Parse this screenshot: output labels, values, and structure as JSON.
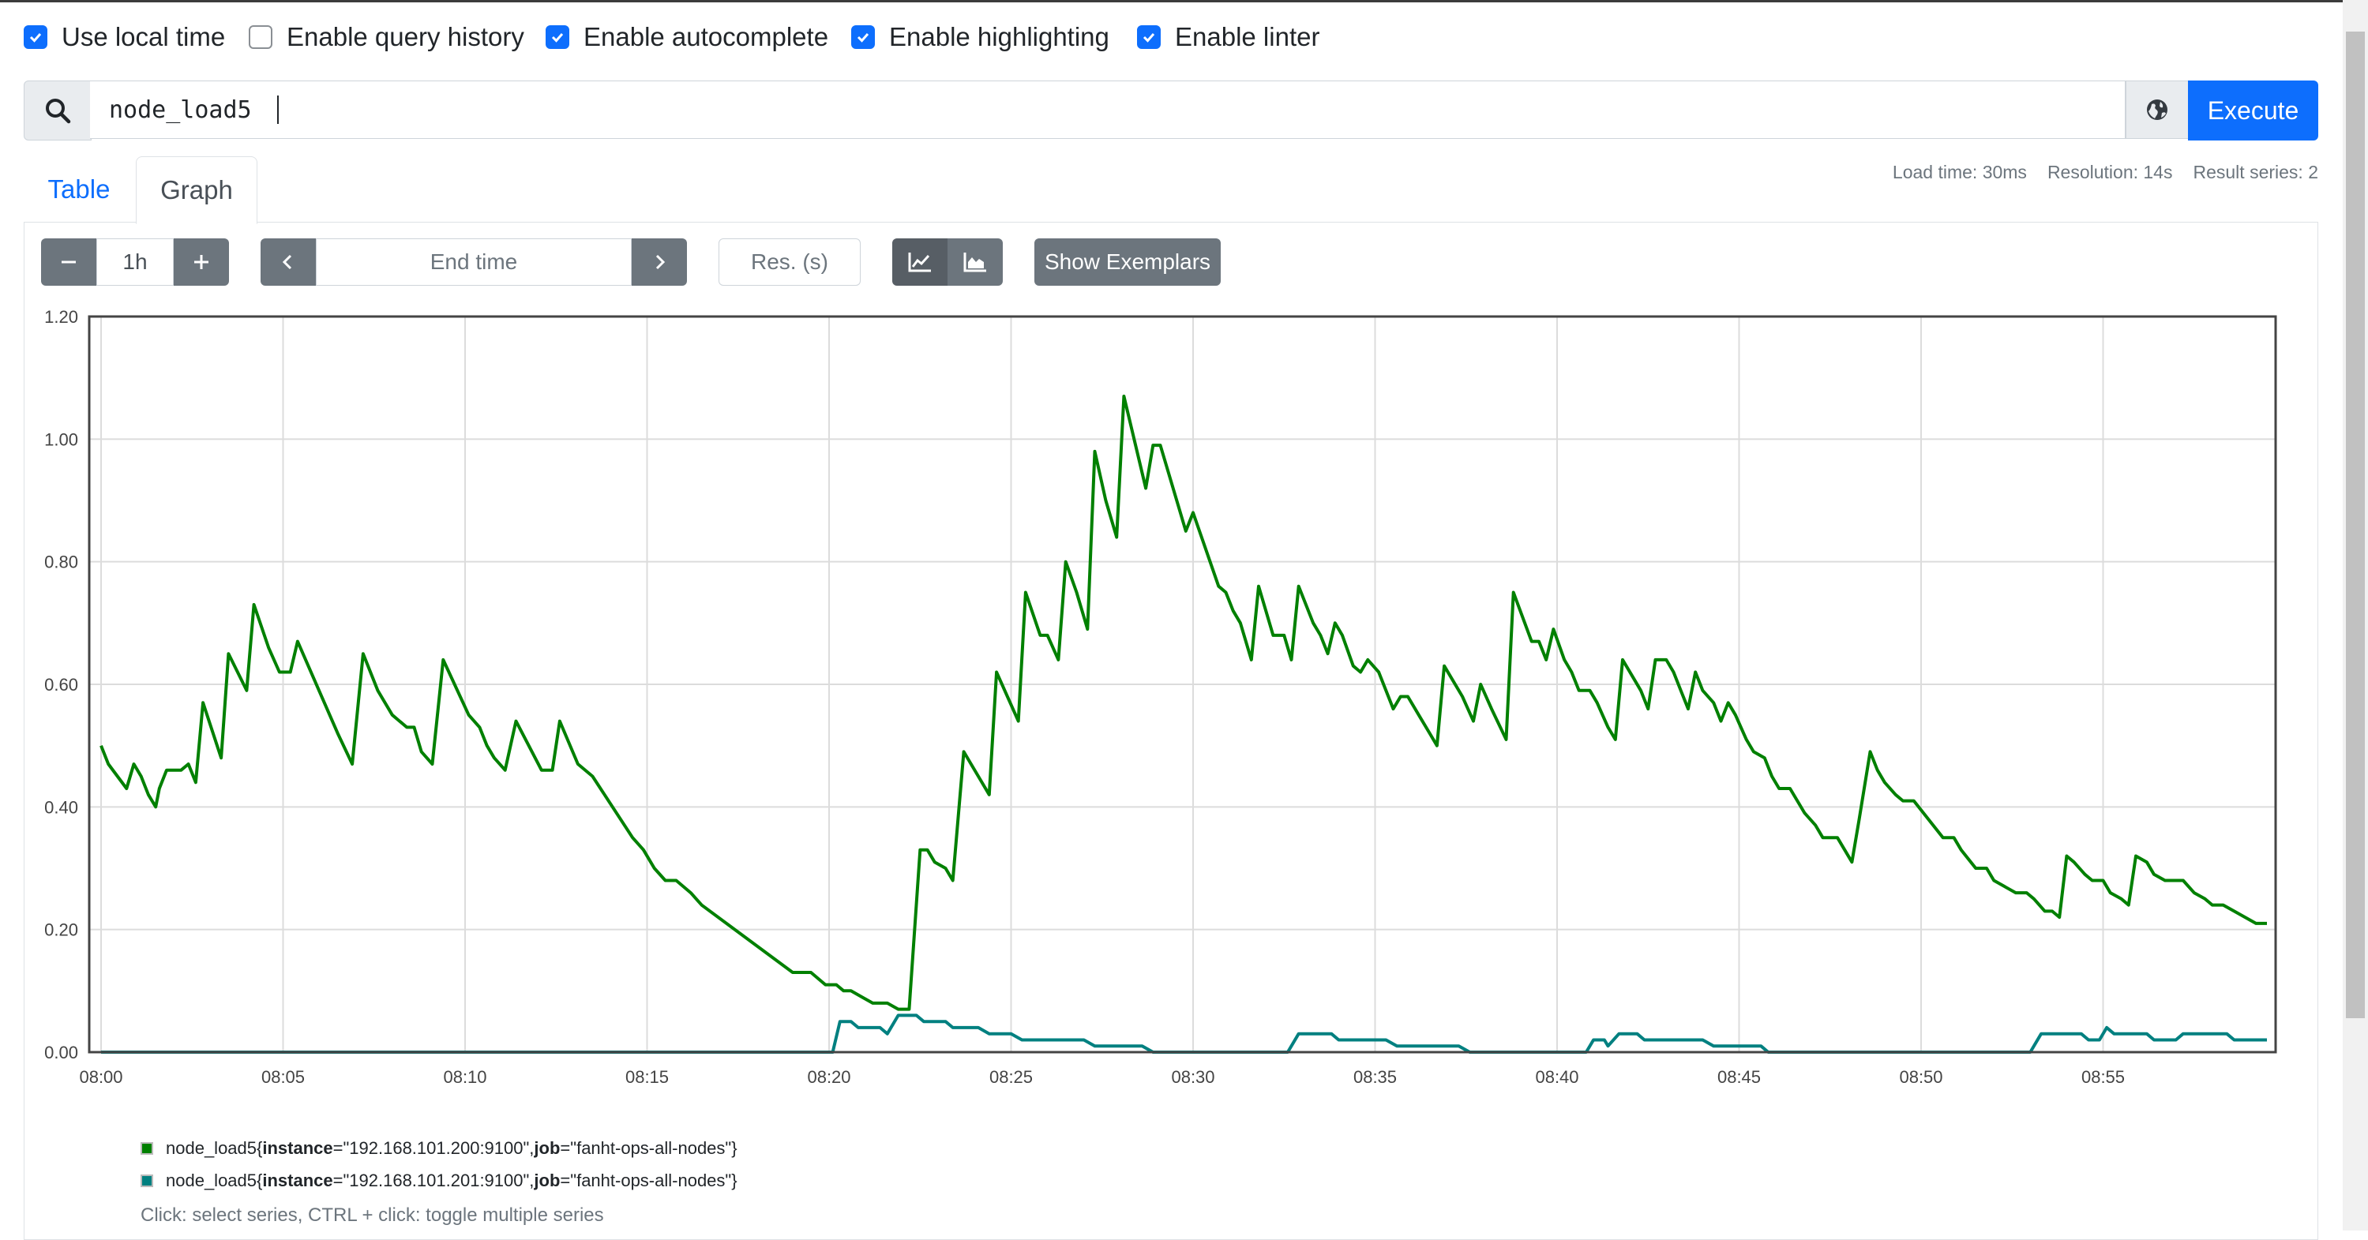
{
  "options": [
    {
      "label": "Use local time",
      "checked": true
    },
    {
      "label": "Enable query history",
      "checked": false
    },
    {
      "label": "Enable autocomplete",
      "checked": true
    },
    {
      "label": "Enable highlighting",
      "checked": true
    },
    {
      "label": "Enable linter",
      "checked": true
    }
  ],
  "expression": {
    "value": "node_load5",
    "execute_label": "Execute"
  },
  "tabs": {
    "table": "Table",
    "graph": "Graph"
  },
  "stats": {
    "load_time": "Load time: 30ms",
    "resolution": "Resolution: 14s",
    "result_series": "Result series: 2"
  },
  "controls": {
    "range": "1h",
    "end_time_placeholder": "End time",
    "res_placeholder": "Res. (s)",
    "exemplars_label": "Show Exemplars"
  },
  "icons": {
    "search": "search-icon",
    "globe": "globe-icon",
    "minus": "minus-icon",
    "plus": "plus-icon",
    "prev": "chevron-left-icon",
    "next": "chevron-right-icon",
    "line": "line-chart-icon",
    "stacked": "area-chart-icon"
  },
  "chart_data": {
    "type": "line",
    "ylim": [
      0,
      1.2
    ],
    "yticks": [
      "0.00",
      "0.20",
      "0.40",
      "0.60",
      "0.80",
      "1.00",
      "1.20"
    ],
    "xlim_minutes": [
      0,
      59.5
    ],
    "xticks": [
      "08:00",
      "08:05",
      "08:10",
      "08:15",
      "08:20",
      "08:25",
      "08:30",
      "08:35",
      "08:40",
      "08:45",
      "08:50",
      "08:55"
    ],
    "grid": true,
    "series": [
      {
        "metric": "node_load5",
        "instance": "192.168.101.200:9100",
        "job": "fanht-ops-all-nodes",
        "color": "#008000",
        "points": [
          [
            0,
            0.5
          ],
          [
            0.2,
            0.47
          ],
          [
            0.7,
            0.43
          ],
          [
            0.9,
            0.47
          ],
          [
            1.1,
            0.45
          ],
          [
            1.3,
            0.42
          ],
          [
            1.5,
            0.4
          ],
          [
            1.6,
            0.43
          ],
          [
            1.8,
            0.46
          ],
          [
            2.2,
            0.46
          ],
          [
            2.4,
            0.47
          ],
          [
            2.6,
            0.44
          ],
          [
            2.8,
            0.57
          ],
          [
            3.3,
            0.48
          ],
          [
            3.5,
            0.65
          ],
          [
            4.0,
            0.59
          ],
          [
            4.2,
            0.73
          ],
          [
            4.6,
            0.66
          ],
          [
            4.9,
            0.62
          ],
          [
            5.2,
            0.62
          ],
          [
            5.4,
            0.67
          ],
          [
            6.5,
            0.52
          ],
          [
            6.9,
            0.47
          ],
          [
            7.2,
            0.65
          ],
          [
            7.6,
            0.59
          ],
          [
            8.0,
            0.55
          ],
          [
            8.2,
            0.54
          ],
          [
            8.4,
            0.53
          ],
          [
            8.6,
            0.53
          ],
          [
            8.8,
            0.49
          ],
          [
            9.1,
            0.47
          ],
          [
            9.4,
            0.64
          ],
          [
            10.1,
            0.55
          ],
          [
            10.4,
            0.53
          ],
          [
            10.6,
            0.5
          ],
          [
            10.8,
            0.48
          ],
          [
            11.1,
            0.46
          ],
          [
            11.4,
            0.54
          ],
          [
            12.1,
            0.46
          ],
          [
            12.4,
            0.46
          ],
          [
            12.6,
            0.54
          ],
          [
            13.1,
            0.47
          ],
          [
            13.5,
            0.45
          ],
          [
            14.6,
            0.35
          ],
          [
            14.9,
            0.33
          ],
          [
            15.2,
            0.3
          ],
          [
            15.5,
            0.28
          ],
          [
            15.8,
            0.28
          ],
          [
            16.2,
            0.26
          ],
          [
            16.5,
            0.24
          ],
          [
            19.0,
            0.13
          ],
          [
            19.5,
            0.13
          ],
          [
            19.9,
            0.11
          ],
          [
            20.2,
            0.11
          ],
          [
            20.4,
            0.1
          ],
          [
            20.6,
            0.1
          ],
          [
            20.9,
            0.09
          ],
          [
            21.2,
            0.08
          ],
          [
            21.6,
            0.08
          ],
          [
            21.9,
            0.07
          ],
          [
            22.2,
            0.07
          ],
          [
            22.5,
            0.33
          ],
          [
            22.7,
            0.33
          ],
          [
            22.9,
            0.31
          ],
          [
            23.2,
            0.3
          ],
          [
            23.4,
            0.28
          ],
          [
            23.7,
            0.49
          ],
          [
            23.9,
            0.47
          ],
          [
            24.1,
            0.45
          ],
          [
            24.4,
            0.42
          ],
          [
            24.6,
            0.62
          ],
          [
            25.2,
            0.54
          ],
          [
            25.4,
            0.75
          ],
          [
            25.8,
            0.68
          ],
          [
            26.0,
            0.68
          ],
          [
            26.3,
            0.64
          ],
          [
            26.5,
            0.8
          ],
          [
            26.8,
            0.75
          ],
          [
            27.1,
            0.69
          ],
          [
            27.3,
            0.98
          ],
          [
            27.6,
            0.9
          ],
          [
            27.9,
            0.84
          ],
          [
            28.1,
            1.07
          ],
          [
            28.7,
            0.92
          ],
          [
            28.9,
            0.99
          ],
          [
            29.1,
            0.99
          ],
          [
            29.6,
            0.89
          ],
          [
            29.8,
            0.85
          ],
          [
            30.0,
            0.88
          ],
          [
            30.7,
            0.76
          ],
          [
            30.9,
            0.75
          ],
          [
            31.1,
            0.72
          ],
          [
            31.3,
            0.7
          ],
          [
            31.6,
            0.64
          ],
          [
            31.8,
            0.76
          ],
          [
            32.2,
            0.68
          ],
          [
            32.5,
            0.68
          ],
          [
            32.7,
            0.64
          ],
          [
            32.9,
            0.76
          ],
          [
            33.3,
            0.7
          ],
          [
            33.5,
            0.68
          ],
          [
            33.7,
            0.65
          ],
          [
            33.9,
            0.7
          ],
          [
            34.1,
            0.68
          ],
          [
            34.4,
            0.63
          ],
          [
            34.6,
            0.62
          ],
          [
            34.8,
            0.64
          ],
          [
            35.1,
            0.62
          ],
          [
            35.5,
            0.56
          ],
          [
            35.7,
            0.58
          ],
          [
            35.9,
            0.58
          ],
          [
            36.2,
            0.55
          ],
          [
            36.5,
            0.52
          ],
          [
            36.7,
            0.5
          ],
          [
            36.9,
            0.63
          ],
          [
            37.4,
            0.58
          ],
          [
            37.7,
            0.54
          ],
          [
            37.9,
            0.6
          ],
          [
            38.2,
            0.56
          ],
          [
            38.6,
            0.51
          ],
          [
            38.8,
            0.75
          ],
          [
            39.3,
            0.67
          ],
          [
            39.5,
            0.67
          ],
          [
            39.7,
            0.64
          ],
          [
            39.9,
            0.69
          ],
          [
            40.2,
            0.64
          ],
          [
            40.4,
            0.62
          ],
          [
            40.6,
            0.59
          ],
          [
            40.9,
            0.59
          ],
          [
            41.1,
            0.57
          ],
          [
            41.4,
            0.53
          ],
          [
            41.6,
            0.51
          ],
          [
            41.8,
            0.64
          ],
          [
            42.1,
            0.61
          ],
          [
            42.3,
            0.59
          ],
          [
            42.5,
            0.56
          ],
          [
            42.7,
            0.64
          ],
          [
            43.0,
            0.64
          ],
          [
            43.2,
            0.62
          ],
          [
            43.4,
            0.59
          ],
          [
            43.6,
            0.56
          ],
          [
            43.8,
            0.62
          ],
          [
            44.0,
            0.59
          ],
          [
            44.3,
            0.57
          ],
          [
            44.5,
            0.54
          ],
          [
            44.7,
            0.57
          ],
          [
            44.9,
            0.55
          ],
          [
            45.2,
            0.51
          ],
          [
            45.4,
            0.49
          ],
          [
            45.7,
            0.48
          ],
          [
            45.9,
            0.45
          ],
          [
            46.1,
            0.43
          ],
          [
            46.4,
            0.43
          ],
          [
            46.6,
            0.41
          ],
          [
            46.8,
            0.39
          ],
          [
            47.1,
            0.37
          ],
          [
            47.3,
            0.35
          ],
          [
            47.7,
            0.35
          ],
          [
            47.9,
            0.33
          ],
          [
            48.1,
            0.31
          ],
          [
            48.3,
            0.38
          ],
          [
            48.6,
            0.49
          ],
          [
            48.8,
            0.46
          ],
          [
            49.0,
            0.44
          ],
          [
            49.3,
            0.42
          ],
          [
            49.5,
            0.41
          ],
          [
            49.8,
            0.41
          ],
          [
            50.2,
            0.38
          ],
          [
            50.6,
            0.35
          ],
          [
            50.9,
            0.35
          ],
          [
            51.1,
            0.33
          ],
          [
            51.5,
            0.3
          ],
          [
            51.8,
            0.3
          ],
          [
            52.0,
            0.28
          ],
          [
            52.3,
            0.27
          ],
          [
            52.6,
            0.26
          ],
          [
            52.9,
            0.26
          ],
          [
            53.1,
            0.25
          ],
          [
            53.4,
            0.23
          ],
          [
            53.6,
            0.23
          ],
          [
            53.8,
            0.22
          ],
          [
            54.0,
            0.32
          ],
          [
            54.2,
            0.31
          ],
          [
            54.5,
            0.29
          ],
          [
            54.7,
            0.28
          ],
          [
            55.0,
            0.28
          ],
          [
            55.2,
            0.26
          ],
          [
            55.5,
            0.25
          ],
          [
            55.7,
            0.24
          ],
          [
            55.9,
            0.32
          ],
          [
            56.2,
            0.31
          ],
          [
            56.4,
            0.29
          ],
          [
            56.7,
            0.28
          ],
          [
            57.2,
            0.28
          ],
          [
            57.5,
            0.26
          ],
          [
            57.8,
            0.25
          ],
          [
            58.0,
            0.24
          ],
          [
            58.3,
            0.24
          ],
          [
            58.6,
            0.23
          ],
          [
            58.9,
            0.22
          ],
          [
            59.2,
            0.21
          ],
          [
            59.5,
            0.21
          ]
        ]
      },
      {
        "metric": "node_load5",
        "instance": "192.168.101.201:9100",
        "job": "fanht-ops-all-nodes",
        "color": "#008080",
        "points": [
          [
            0,
            0.0
          ],
          [
            20.1,
            0.0
          ],
          [
            20.3,
            0.05
          ],
          [
            20.6,
            0.05
          ],
          [
            20.8,
            0.04
          ],
          [
            21.4,
            0.04
          ],
          [
            21.6,
            0.03
          ],
          [
            21.9,
            0.06
          ],
          [
            22.4,
            0.06
          ],
          [
            22.6,
            0.05
          ],
          [
            23.2,
            0.05
          ],
          [
            23.4,
            0.04
          ],
          [
            24.1,
            0.04
          ],
          [
            24.4,
            0.03
          ],
          [
            25.0,
            0.03
          ],
          [
            25.3,
            0.02
          ],
          [
            27.0,
            0.02
          ],
          [
            27.3,
            0.01
          ],
          [
            28.6,
            0.01
          ],
          [
            28.9,
            0.0
          ],
          [
            32.6,
            0.0
          ],
          [
            32.9,
            0.03
          ],
          [
            33.8,
            0.03
          ],
          [
            34.0,
            0.02
          ],
          [
            35.3,
            0.02
          ],
          [
            35.6,
            0.01
          ],
          [
            37.3,
            0.01
          ],
          [
            37.6,
            0.0
          ],
          [
            40.8,
            0.0
          ],
          [
            41.0,
            0.02
          ],
          [
            41.3,
            0.02
          ],
          [
            41.4,
            0.01
          ],
          [
            41.7,
            0.03
          ],
          [
            42.2,
            0.03
          ],
          [
            42.4,
            0.02
          ],
          [
            44.0,
            0.02
          ],
          [
            44.3,
            0.01
          ],
          [
            45.6,
            0.01
          ],
          [
            45.8,
            0.0
          ],
          [
            53.0,
            0.0
          ],
          [
            53.3,
            0.03
          ],
          [
            54.4,
            0.03
          ],
          [
            54.6,
            0.02
          ],
          [
            54.9,
            0.02
          ],
          [
            55.1,
            0.04
          ],
          [
            55.3,
            0.03
          ],
          [
            56.2,
            0.03
          ],
          [
            56.4,
            0.02
          ],
          [
            57.0,
            0.02
          ],
          [
            57.2,
            0.03
          ],
          [
            58.4,
            0.03
          ],
          [
            58.6,
            0.02
          ],
          [
            59.5,
            0.02
          ]
        ]
      }
    ]
  },
  "legend": [
    {
      "prefix": "node_load5{",
      "k1": "instance",
      "v1": "=\"192.168.101.200:9100\", ",
      "k2": "job",
      "v2": "=\"fanht-ops-all-nodes\"}",
      "color": "#008000"
    },
    {
      "prefix": "node_load5{",
      "k1": "instance",
      "v1": "=\"192.168.101.201:9100\", ",
      "k2": "job",
      "v2": "=\"fanht-ops-all-nodes\"}",
      "color": "#008080"
    }
  ],
  "hint": "Click: select series, CTRL + click: toggle multiple series"
}
